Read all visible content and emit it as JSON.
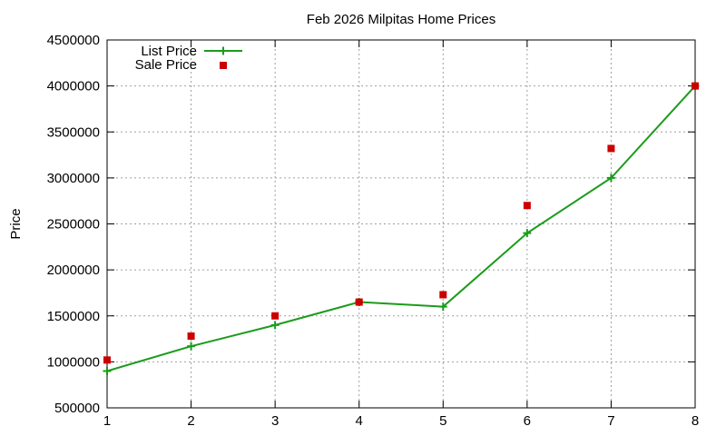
{
  "chart_data": {
    "type": "line",
    "title": "Feb 2026 Milpitas Home Prices",
    "xlabel": "",
    "ylabel": "Price",
    "x": [
      1,
      2,
      3,
      4,
      5,
      6,
      7,
      8
    ],
    "xlim": [
      1,
      8
    ],
    "ylim": [
      500000,
      4500000
    ],
    "xticks": [
      "1",
      "2",
      "3",
      "4",
      "5",
      "6",
      "7",
      "8"
    ],
    "yticks": [
      "500000",
      "1000000",
      "1500000",
      "2000000",
      "2500000",
      "3000000",
      "3500000",
      "4000000",
      "4500000"
    ],
    "grid": true,
    "legend_position": "top-left",
    "series": [
      {
        "name": "List Price",
        "style": "line-with-plus-markers",
        "color": "#1a9c1a",
        "values": [
          900000,
          1170000,
          1400000,
          1650000,
          1600000,
          2400000,
          3000000,
          4000000
        ]
      },
      {
        "name": "Sale Price",
        "style": "square-markers",
        "color": "#cc0000",
        "values": [
          1020000,
          1280000,
          1500000,
          1650000,
          1730000,
          2700000,
          3320000,
          4000000
        ]
      }
    ]
  }
}
